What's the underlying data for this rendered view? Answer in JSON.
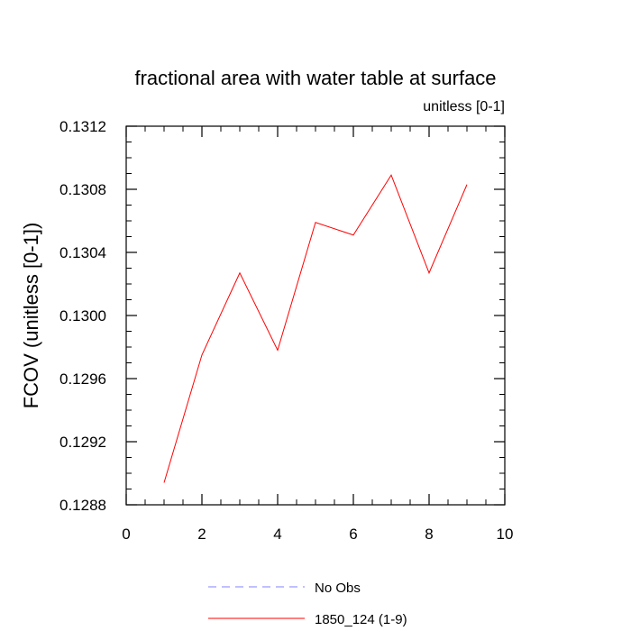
{
  "chart_data": {
    "type": "line",
    "title": "fractional area with water table at surface",
    "subtitle": "unitless [0-1]",
    "xlabel": "",
    "ylabel": "FCOV  (unitless [0-1])",
    "xlim": [
      0,
      10
    ],
    "ylim": [
      0.1288,
      0.1312
    ],
    "x_ticks": [
      "0",
      "2",
      "4",
      "6",
      "8",
      "10"
    ],
    "y_ticks": [
      "0.1288",
      "0.1292",
      "0.1296",
      "0.1300",
      "0.1304",
      "0.1308",
      "0.1312"
    ],
    "grid": false,
    "legend_position": "bottom",
    "series": [
      {
        "name": "No Obs",
        "color": "#8080ff",
        "style": "dashed",
        "x": [],
        "values": []
      },
      {
        "name": "1850_124 (1-9)",
        "color": "#ff0000",
        "style": "solid",
        "x": [
          1,
          2,
          3,
          4,
          5,
          6,
          7,
          8,
          9
        ],
        "values": [
          0.12894,
          0.12975,
          0.13027,
          0.12978,
          0.13059,
          0.13051,
          0.13089,
          0.13027,
          0.13083
        ]
      }
    ]
  }
}
